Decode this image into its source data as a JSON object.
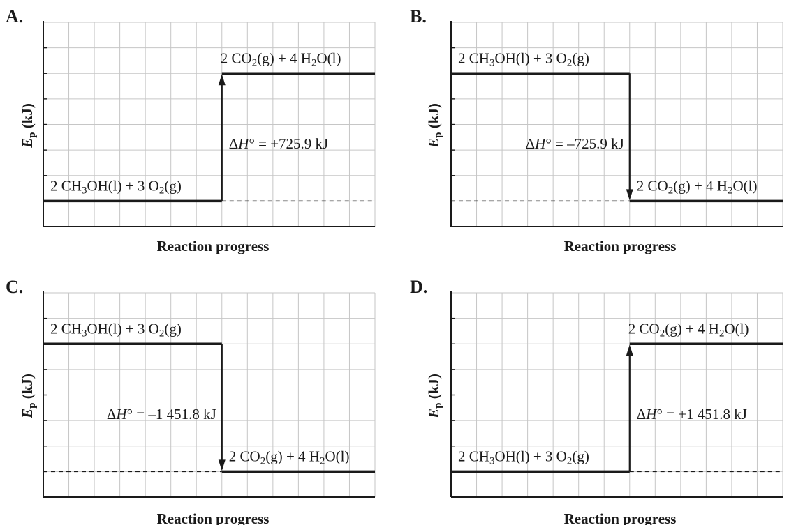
{
  "panels": [
    {
      "letter": "A.",
      "reactants": {
        "prefix": "2 CH",
        "sub1": "3",
        "mid": "OH(l) + 3 O",
        "sub2": "2",
        "suffix": "(g)"
      },
      "products": {
        "prefix": "2 CO",
        "sub1": "2",
        "mid": "(g) + 4 H",
        "sub2": "2",
        "suffix": "O(l)"
      },
      "delta_h": {
        "sym_pre": "Δ",
        "sym_ital": "H",
        "sym_post": "° = ",
        "value": "+725.9 kJ"
      },
      "direction": "up",
      "reactant_level": 1,
      "product_level": 6,
      "x_label": "Reaction progress",
      "y_label_symbol": "E",
      "y_label_sub": "p",
      "y_label_unit": " (kJ)"
    },
    {
      "letter": "B.",
      "reactants": {
        "prefix": "2 CH",
        "sub1": "3",
        "mid": "OH(l) + 3 O",
        "sub2": "2",
        "suffix": "(g)"
      },
      "products": {
        "prefix": "2 CO",
        "sub1": "2",
        "mid": "(g) + 4 H",
        "sub2": "2",
        "suffix": "O(l)"
      },
      "delta_h": {
        "sym_pre": "Δ",
        "sym_ital": "H",
        "sym_post": "° = ",
        "value": "–725.9 kJ"
      },
      "direction": "down",
      "reactant_level": 6,
      "product_level": 1,
      "x_label": "Reaction progress",
      "y_label_symbol": "E",
      "y_label_sub": "p",
      "y_label_unit": " (kJ)"
    },
    {
      "letter": "C.",
      "reactants": {
        "prefix": "2 CH",
        "sub1": "3",
        "mid": "OH(l) + 3 O",
        "sub2": "2",
        "suffix": "(g)"
      },
      "products": {
        "prefix": "2 CO",
        "sub1": "2",
        "mid": "(g) + 4 H",
        "sub2": "2",
        "suffix": "O(l)"
      },
      "delta_h": {
        "sym_pre": "Δ",
        "sym_ital": "H",
        "sym_post": "° = ",
        "value": "–1 451.8 kJ"
      },
      "direction": "down",
      "reactant_level": 6,
      "product_level": 1,
      "x_label": "Reaction progress",
      "y_label_symbol": "E",
      "y_label_sub": "p",
      "y_label_unit": " (kJ)"
    },
    {
      "letter": "D.",
      "reactants": {
        "prefix": "2 CH",
        "sub1": "3",
        "mid": "OH(l) + 3 O",
        "sub2": "2",
        "suffix": "(g)"
      },
      "products": {
        "prefix": "2 CO",
        "sub1": "2",
        "mid": "(g) + 4 H",
        "sub2": "2",
        "suffix": "O(l)"
      },
      "delta_h": {
        "sym_pre": "Δ",
        "sym_ital": "H",
        "sym_post": "° = ",
        "value": "+1 451.8 kJ"
      },
      "direction": "up",
      "reactant_level": 1,
      "product_level": 6,
      "x_label": "Reaction progress",
      "y_label_symbol": "E",
      "y_label_sub": "p",
      "y_label_unit": " (kJ)"
    }
  ],
  "colors": {
    "ink": "#1a1a1a",
    "grid": "#c6c6c6",
    "background": "#ffffff"
  }
}
